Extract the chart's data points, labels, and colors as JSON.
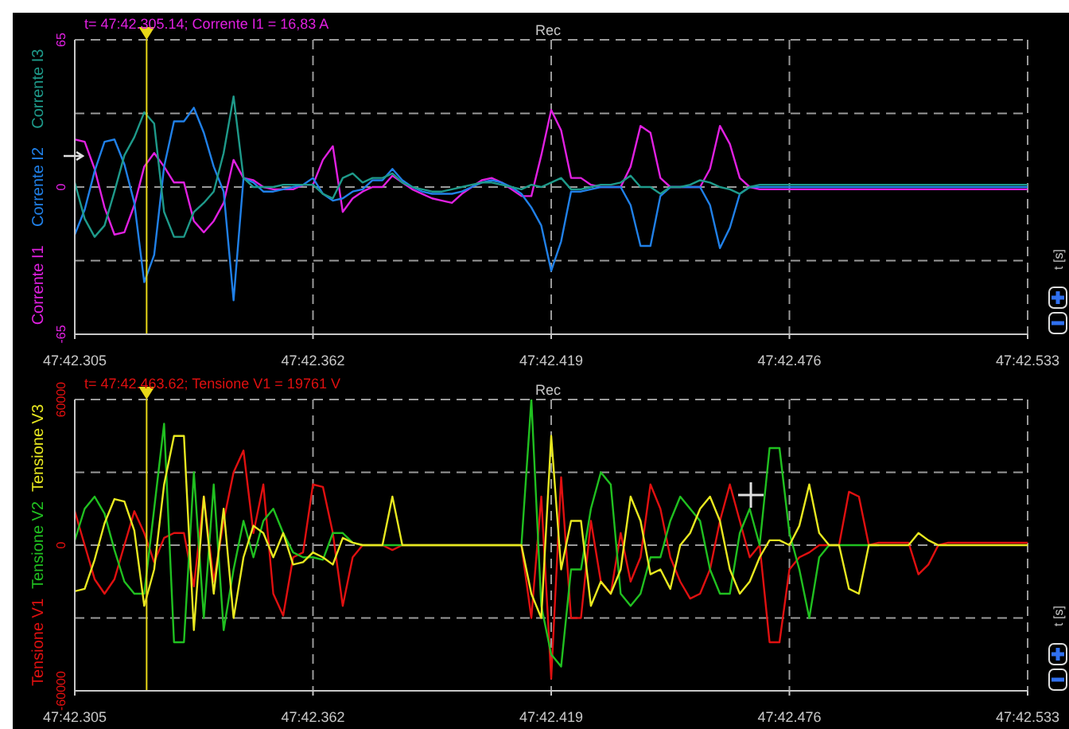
{
  "chart_data": [
    {
      "type": "line",
      "annotations": [
        "t= 47:42.305.14; Corrente I1 = 16,83 A",
        "Rec",
        "t [s]"
      ],
      "legend": "left",
      "grid": true,
      "marker": "none",
      "line_style": "solid",
      "categories": [
        "47:42.305",
        null,
        null,
        null,
        null,
        null,
        null,
        null,
        null,
        null,
        null,
        null,
        null,
        null,
        null,
        null,
        null,
        null,
        null,
        null,
        null,
        null,
        null,
        null,
        "47:42.362",
        null,
        null,
        null,
        null,
        null,
        null,
        null,
        null,
        null,
        null,
        null,
        null,
        null,
        null,
        null,
        null,
        null,
        null,
        null,
        null,
        null,
        null,
        null,
        "47:42.419",
        null,
        null,
        null,
        null,
        null,
        null,
        null,
        null,
        null,
        null,
        null,
        null,
        null,
        null,
        null,
        null,
        null,
        null,
        null,
        null,
        null,
        null,
        null,
        "47:42.476",
        null,
        null,
        null,
        null,
        null,
        null,
        null,
        null,
        null,
        null,
        null,
        null,
        null,
        null,
        null,
        null,
        null,
        null,
        null,
        null,
        null,
        null,
        null,
        "47:42.533"
      ],
      "ylim": [
        -65,
        65
      ],
      "yticks": [
        -65,
        {
          "value": -32.5,
          "label": null
        },
        0,
        {
          "value": 32.5,
          "label": null
        },
        65
      ],
      "series": [
        {
          "name": "Corrente I1",
          "color": "#e020e0",
          "values": [
            21,
            20,
            8,
            -9,
            -21,
            -20,
            -8,
            9,
            15,
            9,
            2,
            2,
            -15,
            -20,
            -15,
            -7,
            12,
            4,
            3,
            0,
            -1,
            -1,
            -1,
            1,
            1,
            12,
            18,
            -11,
            -5,
            -2,
            0,
            0,
            5,
            2,
            -1,
            -3,
            -5,
            -6,
            -7,
            -3,
            0,
            3,
            4,
            2,
            -1,
            -4,
            -4,
            14,
            34,
            25,
            4,
            4,
            1,
            0,
            0,
            0,
            9,
            27,
            24,
            4,
            0,
            0,
            0,
            0,
            8,
            27,
            19,
            4,
            0,
            -1,
            -1,
            -1,
            -1,
            -1,
            -1,
            -1,
            -1,
            -1,
            -1,
            -1,
            -1,
            -1,
            -1,
            -1,
            -1,
            -1,
            -1,
            -1,
            -1,
            -1,
            -1,
            -1,
            -1,
            -1,
            -1,
            -1,
            -1
          ]
        },
        {
          "name": "Corrente I2",
          "color": "#2080e8",
          "values": [
            -21,
            -10,
            7,
            20,
            21,
            10,
            -7,
            -42,
            -30,
            9,
            29,
            29,
            35,
            24,
            9,
            -2,
            -50,
            4,
            2,
            -2,
            -2,
            -1,
            0,
            1,
            4,
            -3,
            -6,
            -5,
            -2,
            -1,
            3,
            3,
            8,
            3,
            0,
            -2,
            -3,
            -3,
            -3,
            -2,
            0,
            2,
            3,
            2,
            0,
            -3,
            -9,
            -17,
            -37,
            -24,
            -2,
            -2,
            -1,
            0,
            0,
            0,
            -8,
            -26,
            -26,
            -4,
            0,
            0,
            0,
            0,
            -8,
            -27,
            -18,
            -3,
            0,
            0,
            0,
            0,
            0,
            0,
            0,
            0,
            0,
            0,
            0,
            0,
            0,
            0,
            0,
            0,
            0,
            0,
            0,
            0,
            0,
            0,
            0,
            0,
            0,
            0,
            0,
            0,
            0
          ]
        },
        {
          "name": "Corrente I3",
          "color": "#1e9a8a",
          "values": [
            2,
            -14,
            -22,
            -17,
            -2,
            14,
            22,
            33,
            28,
            -11,
            -22,
            -22,
            -11,
            -7,
            -2,
            15,
            40,
            4,
            0,
            0,
            0,
            1,
            1,
            1,
            1,
            -3,
            -5,
            4,
            6,
            2,
            4,
            4,
            6,
            2,
            0,
            -1,
            -2,
            -2,
            -1,
            0,
            1,
            2,
            2,
            1,
            0,
            -1,
            1,
            0,
            2,
            4,
            -1,
            -1,
            0,
            1,
            1,
            2,
            5,
            0,
            0,
            -3,
            0,
            0,
            1,
            3,
            2,
            0,
            -1,
            -3,
            0,
            1,
            1,
            1,
            1,
            1,
            1,
            1,
            1,
            1,
            1,
            1,
            1,
            1,
            1,
            1,
            1,
            1,
            1,
            1,
            1,
            1,
            1,
            1,
            1,
            1,
            1,
            1,
            1
          ]
        }
      ]
    },
    {
      "type": "line",
      "annotations": [
        "t= 47:42.463.62; Tensione V1 = 19761 V",
        "Rec",
        "t [s]"
      ],
      "legend": "left",
      "grid": true,
      "marker": "none",
      "line_style": "solid",
      "categories": [
        "47:42.305",
        null,
        null,
        null,
        null,
        null,
        null,
        null,
        null,
        null,
        null,
        null,
        null,
        null,
        null,
        null,
        null,
        null,
        null,
        null,
        null,
        null,
        null,
        null,
        "47:42.362",
        null,
        null,
        null,
        null,
        null,
        null,
        null,
        null,
        null,
        null,
        null,
        null,
        null,
        null,
        null,
        null,
        null,
        null,
        null,
        null,
        null,
        null,
        null,
        "47:42.419",
        null,
        null,
        null,
        null,
        null,
        null,
        null,
        null,
        null,
        null,
        null,
        null,
        null,
        null,
        null,
        null,
        null,
        null,
        null,
        null,
        null,
        null,
        null,
        "47:42.476",
        null,
        null,
        null,
        null,
        null,
        null,
        null,
        null,
        null,
        null,
        null,
        null,
        null,
        null,
        null,
        null,
        null,
        null,
        null,
        null,
        null,
        null,
        null,
        "47:42.533"
      ],
      "ylim": [
        -60000,
        60000
      ],
      "yticks": [
        -60000,
        {
          "value": -30000,
          "label": null
        },
        0,
        {
          "value": 30000,
          "label": null
        },
        60000
      ],
      "series": [
        {
          "name": "Tensione V1",
          "color": "#e01010",
          "values": [
            14000,
            0,
            -14000,
            -20000,
            -14000,
            0,
            14000,
            5000,
            -7000,
            3000,
            5000,
            5000,
            -17000,
            20000,
            -15000,
            10000,
            30000,
            39000,
            5000,
            25000,
            -20000,
            -29000,
            -5000,
            -3000,
            25000,
            24000,
            5000,
            -25000,
            -5000,
            0,
            0,
            0,
            -2000,
            0,
            0,
            0,
            0,
            0,
            0,
            0,
            0,
            0,
            0,
            0,
            0,
            0,
            -30000,
            20000,
            -55000,
            28000,
            -30000,
            -30000,
            10000,
            -15000,
            -20000,
            5000,
            -15000,
            -5000,
            25000,
            15000,
            -5000,
            -15000,
            -22000,
            -20000,
            -10000,
            10000,
            25000,
            10000,
            -5000,
            0,
            -40000,
            -40000,
            -10000,
            -5000,
            -3000,
            0,
            0,
            0,
            22000,
            20000,
            0,
            1000,
            1000,
            1000,
            1000,
            -12000,
            -8000,
            0,
            1000,
            1000,
            1000,
            1000,
            1000,
            1000,
            1000,
            1000,
            1000
          ]
        },
        {
          "name": "Tensione V2",
          "color": "#20c020",
          "values": [
            2000,
            15000,
            20000,
            13000,
            -2000,
            -15000,
            -20000,
            -20000,
            15000,
            50000,
            -40000,
            -40000,
            30000,
            -30000,
            25000,
            -35000,
            -10000,
            10000,
            -5000,
            10000,
            15000,
            5000,
            -3000,
            -5000,
            -5000,
            -6000,
            5000,
            5000,
            1000,
            0,
            0,
            0,
            0,
            0,
            0,
            0,
            0,
            0,
            0,
            0,
            0,
            0,
            0,
            0,
            0,
            0,
            60000,
            -25000,
            -45000,
            -50000,
            -10000,
            -10000,
            15000,
            30000,
            25000,
            -20000,
            -25000,
            -20000,
            -5000,
            -5000,
            10000,
            20000,
            15000,
            10000,
            -10000,
            -20000,
            -20000,
            5000,
            15000,
            0,
            40000,
            40000,
            5000,
            -10000,
            -30000,
            -5000,
            0,
            0,
            0,
            0,
            0,
            0,
            null,
            null,
            null,
            null,
            null,
            null,
            null,
            null,
            null,
            null,
            null,
            null,
            null,
            null,
            null
          ]
        },
        {
          "name": "Tensione V3",
          "color": "#e8e820",
          "values": [
            -19000,
            -18000,
            -6000,
            9000,
            19000,
            18000,
            6000,
            -25000,
            -10000,
            25000,
            45000,
            45000,
            -35000,
            20000,
            -20000,
            15000,
            -30000,
            -5000,
            8000,
            5000,
            -5000,
            5000,
            -8000,
            -7000,
            -3000,
            -5000,
            -8000,
            3000,
            1000,
            0,
            0,
            0,
            20000,
            0,
            0,
            0,
            0,
            0,
            0,
            0,
            0,
            0,
            0,
            0,
            0,
            0,
            -20000,
            -30000,
            45000,
            -10000,
            10000,
            10000,
            -25000,
            -15000,
            -20000,
            -10000,
            20000,
            10000,
            -12000,
            -10000,
            -18000,
            0,
            5000,
            15000,
            20000,
            10000,
            -10000,
            -20000,
            -15000,
            -5000,
            2000,
            2000,
            0,
            8000,
            25000,
            5000,
            0,
            0,
            -18000,
            -20000,
            0,
            0,
            0,
            0,
            0,
            5000,
            2000,
            0,
            0,
            0,
            0,
            0,
            0,
            0,
            0,
            0,
            0
          ]
        }
      ]
    }
  ]
}
